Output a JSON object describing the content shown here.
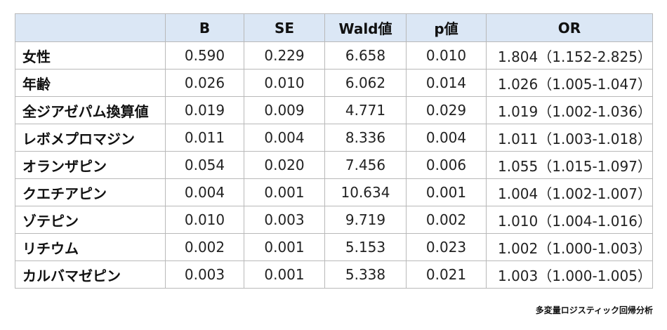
{
  "table": {
    "headers": [
      "",
      "B",
      "SE",
      "Wald値",
      "p値",
      "OR"
    ],
    "rows": [
      {
        "label": "女性",
        "B": "0.590",
        "SE": "0.229",
        "Wald": "6.658",
        "p": "0.010",
        "OR": "1.804（1.152-2.825）"
      },
      {
        "label": "年齢",
        "B": "0.026",
        "SE": "0.010",
        "Wald": "6.062",
        "p": "0.014",
        "OR": "1.026（1.005-1.047）"
      },
      {
        "label": "全ジアゼパム換算値",
        "B": "0.019",
        "SE": "0.009",
        "Wald": "4.771",
        "p": "0.029",
        "OR": "1.019（1.002-1.036）"
      },
      {
        "label": "レボメプロマジン",
        "B": "0.011",
        "SE": "0.004",
        "Wald": "8.336",
        "p": "0.004",
        "OR": "1.011（1.003-1.018）"
      },
      {
        "label": "オランザピン",
        "B": "0.054",
        "SE": "0.020",
        "Wald": "7.456",
        "p": "0.006",
        "OR": "1.055（1.015-1.097）"
      },
      {
        "label": "クエチアピン",
        "B": "0.004",
        "SE": "0.001",
        "Wald": "10.634",
        "p": "0.001",
        "OR": "1.004（1.002-1.007）"
      },
      {
        "label": "ゾテピン",
        "B": "0.010",
        "SE": "0.003",
        "Wald": "9.719",
        "p": "0.002",
        "OR": "1.010（1.004-1.016）"
      },
      {
        "label": "リチウム",
        "B": "0.002",
        "SE": "0.001",
        "Wald": "5.153",
        "p": "0.023",
        "OR": "1.002（1.000-1.003）"
      },
      {
        "label": "カルバマゼピン",
        "B": "0.003",
        "SE": "0.001",
        "Wald": "5.338",
        "p": "0.021",
        "OR": "1.003（1.000-1.005）"
      }
    ]
  },
  "caption": "多変量ロジスティック回帰分析",
  "colors": {
    "header_bg": "#dbe7f5",
    "border": "#b9b9b9"
  }
}
